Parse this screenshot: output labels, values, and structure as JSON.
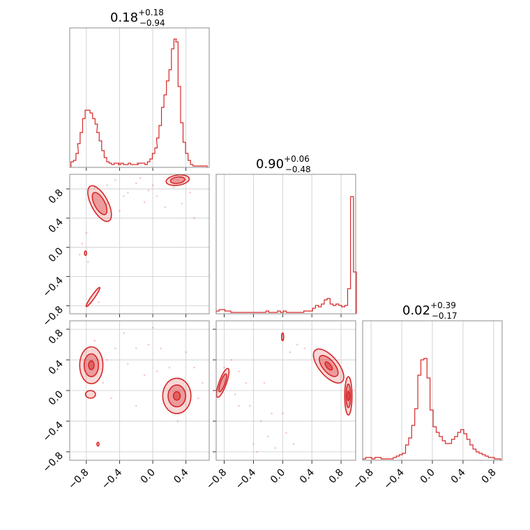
{
  "chart_data": {
    "type": "corner",
    "color": "#d62728",
    "grid": true,
    "titles": [
      {
        "value": "0.18",
        "plus": "+0.18",
        "minus": "−0.94"
      },
      {
        "value": "0.90",
        "plus": "+0.06",
        "minus": "−0.48"
      },
      {
        "value": "0.02",
        "plus": "+0.39",
        "minus": "−0.17"
      }
    ],
    "ticks": {
      "p0_x": [
        "−0.8",
        "−0.4",
        "0.0",
        "0.4"
      ],
      "p1_x": [
        "−0.8",
        "−0.4",
        "0.0",
        "0.4",
        "0.8"
      ],
      "p2_x": [
        "−0.8",
        "−0.4",
        "0.0",
        "0.4",
        "0.8"
      ],
      "p1_y": [
        "0.8",
        "0.4",
        "0.0",
        "−0.4",
        "−0.8"
      ],
      "p2_y": [
        "0.8",
        "0.4",
        "0.0",
        "−0.4",
        "−0.8"
      ]
    },
    "ranges": {
      "p0": [
        -1.0,
        0.68
      ],
      "p1": [
        -0.91,
        1.0
      ],
      "p2": [
        -0.91,
        0.91
      ]
    },
    "hist_p0": {
      "x": [
        -0.97,
        -0.94,
        -0.91,
        -0.89,
        -0.86,
        -0.83,
        -0.8,
        -0.77,
        -0.74,
        -0.71,
        -0.68,
        -0.66,
        -0.63,
        -0.6,
        -0.57,
        -0.54,
        -0.51,
        -0.48,
        -0.45,
        -0.42,
        -0.4,
        -0.37,
        -0.34,
        -0.31,
        -0.28,
        -0.25,
        -0.22,
        -0.19,
        -0.17,
        -0.14,
        -0.11,
        -0.08,
        -0.05,
        -0.02,
        0.01,
        0.04,
        0.06,
        0.09,
        0.12,
        0.15,
        0.18,
        0.21,
        0.24,
        0.27,
        0.29,
        0.32,
        0.35,
        0.38,
        0.41,
        0.44,
        0.47,
        0.5,
        0.52,
        0.55,
        0.58,
        0.61,
        0.64
      ],
      "y": [
        0.04,
        0.05,
        0.1,
        0.17,
        0.25,
        0.35,
        0.41,
        0.41,
        0.39,
        0.35,
        0.31,
        0.25,
        0.19,
        0.12,
        0.07,
        0.04,
        0.03,
        0.02,
        0.03,
        0.03,
        0.02,
        0.03,
        0.02,
        0.02,
        0.03,
        0.02,
        0.02,
        0.02,
        0.03,
        0.03,
        0.03,
        0.02,
        0.04,
        0.06,
        0.1,
        0.14,
        0.21,
        0.3,
        0.43,
        0.52,
        0.62,
        0.7,
        0.85,
        0.92,
        0.9,
        0.58,
        0.32,
        0.18,
        0.1,
        0.05,
        0.02,
        0.01,
        0.01,
        0.01,
        0.01,
        0.01,
        0.01
      ]
    },
    "hist_p1": {
      "x": [
        -0.89,
        -0.85,
        -0.81,
        -0.77,
        -0.73,
        -0.69,
        -0.65,
        -0.61,
        -0.57,
        -0.53,
        -0.49,
        -0.45,
        -0.41,
        -0.37,
        -0.33,
        -0.29,
        -0.25,
        -0.21,
        -0.17,
        -0.13,
        -0.09,
        -0.05,
        -0.01,
        0.03,
        0.07,
        0.11,
        0.15,
        0.19,
        0.23,
        0.27,
        0.31,
        0.35,
        0.39,
        0.43,
        0.47,
        0.51,
        0.55,
        0.59,
        0.63,
        0.67,
        0.71,
        0.75,
        0.79,
        0.83,
        0.87,
        0.91,
        0.95,
        0.99
      ],
      "y": [
        0.02,
        0.03,
        0.03,
        0.02,
        0.02,
        0.01,
        0.01,
        0.01,
        0.01,
        0.01,
        0.01,
        0.01,
        0.01,
        0.01,
        0.01,
        0.01,
        0.01,
        0.02,
        0.01,
        0.01,
        0.01,
        0.02,
        0.01,
        0.02,
        0.01,
        0.01,
        0.01,
        0.01,
        0.01,
        0.01,
        0.02,
        0.02,
        0.02,
        0.04,
        0.06,
        0.05,
        0.07,
        0.1,
        0.11,
        0.07,
        0.06,
        0.07,
        0.06,
        0.05,
        0.06,
        0.18,
        0.84,
        0.3
      ]
    },
    "hist_p2": {
      "x": [
        -0.89,
        -0.85,
        -0.81,
        -0.77,
        -0.73,
        -0.69,
        -0.65,
        -0.61,
        -0.57,
        -0.53,
        -0.49,
        -0.45,
        -0.41,
        -0.37,
        -0.33,
        -0.29,
        -0.25,
        -0.21,
        -0.17,
        -0.13,
        -0.09,
        -0.05,
        -0.01,
        0.03,
        0.07,
        0.11,
        0.15,
        0.19,
        0.23,
        0.27,
        0.31,
        0.35,
        0.39,
        0.43,
        0.47,
        0.51,
        0.55,
        0.59,
        0.63,
        0.67,
        0.71,
        0.75,
        0.79,
        0.83,
        0.87
      ],
      "y": [
        0.01,
        0.02,
        0.02,
        0.01,
        0.02,
        0.02,
        0.01,
        0.01,
        0.01,
        0.01,
        0.02,
        0.03,
        0.04,
        0.05,
        0.11,
        0.16,
        0.25,
        0.37,
        0.61,
        0.72,
        0.73,
        0.59,
        0.36,
        0.24,
        0.2,
        0.17,
        0.14,
        0.12,
        0.12,
        0.15,
        0.17,
        0.2,
        0.22,
        0.19,
        0.15,
        0.11,
        0.08,
        0.06,
        0.05,
        0.04,
        0.03,
        0.02,
        0.02,
        0.01,
        0.01
      ]
    },
    "scatter": {
      "p1_vs_p0": [
        [
          -0.7,
          0.82
        ],
        [
          -0.55,
          0.85
        ],
        [
          -0.45,
          0.92
        ],
        [
          -0.3,
          0.75
        ],
        [
          -0.2,
          0.88
        ],
        [
          -0.1,
          0.62
        ],
        [
          0.05,
          0.7
        ],
        [
          0.15,
          0.55
        ],
        [
          0.25,
          0.82
        ],
        [
          0.35,
          0.6
        ],
        [
          -0.8,
          0.2
        ],
        [
          -0.85,
          0.05
        ],
        [
          -0.78,
          -0.2
        ],
        [
          -0.88,
          -0.1
        ],
        [
          -0.65,
          -0.75
        ],
        [
          -0.4,
          0.5
        ],
        [
          0.45,
          0.75
        ],
        [
          0.2,
          0.95
        ],
        [
          -0.15,
          0.95
        ],
        [
          -0.55,
          0.6
        ],
        [
          0.0,
          0.85
        ],
        [
          -0.35,
          0.7
        ],
        [
          0.3,
          0.92
        ],
        [
          -0.05,
          0.78
        ],
        [
          0.5,
          0.4
        ]
      ],
      "p2_vs_p0": [
        [
          -0.45,
          0.55
        ],
        [
          -0.3,
          0.35
        ],
        [
          -0.1,
          0.2
        ],
        [
          0.0,
          0.82
        ],
        [
          0.1,
          0.55
        ],
        [
          -0.6,
          0.1
        ],
        [
          -0.5,
          -0.1
        ],
        [
          0.5,
          0.3
        ],
        [
          0.55,
          -0.1
        ],
        [
          0.2,
          0.3
        ],
        [
          -0.2,
          -0.2
        ],
        [
          -0.35,
          0.75
        ],
        [
          0.4,
          0.5
        ],
        [
          -0.7,
          0.65
        ],
        [
          -0.2,
          0.55
        ],
        [
          0.05,
          0.25
        ],
        [
          -0.55,
          0.4
        ],
        [
          0.3,
          -0.4
        ],
        [
          0.6,
          0.1
        ],
        [
          -0.05,
          0.6
        ]
      ],
      "p2_vs_p1": [
        [
          -0.8,
          0.3
        ],
        [
          -0.6,
          0.25
        ],
        [
          -0.5,
          0.1
        ],
        [
          -0.45,
          -0.2
        ],
        [
          -0.3,
          -0.4
        ],
        [
          -0.2,
          -0.6
        ],
        [
          -0.1,
          -0.75
        ],
        [
          0.05,
          -0.55
        ],
        [
          -0.7,
          0.4
        ],
        [
          -0.4,
          -0.7
        ],
        [
          0.2,
          0.6
        ],
        [
          0.1,
          0.5
        ],
        [
          -0.25,
          0.1
        ],
        [
          -0.6,
          -0.2
        ],
        [
          -0.15,
          -0.3
        ],
        [
          0.3,
          0.55
        ],
        [
          -0.35,
          -0.8
        ],
        [
          0.0,
          -0.3
        ],
        [
          -0.65,
          -0.05
        ],
        [
          0.15,
          -0.7
        ]
      ]
    },
    "blobs": {
      "p1_vs_p0": [
        {
          "cx": -0.64,
          "cy": 0.6,
          "rx": 0.1,
          "ry": 0.27,
          "rot": -28,
          "levels": 2
        },
        {
          "cx": 0.3,
          "cy": 0.92,
          "rx": 0.14,
          "ry": 0.07,
          "rot": -8,
          "levels": 2
        },
        {
          "cx": -0.72,
          "cy": -0.68,
          "rx": 0.02,
          "ry": 0.16,
          "rot": 35,
          "levels": 1
        },
        {
          "cx": -0.81,
          "cy": -0.08,
          "rx": 0.012,
          "ry": 0.03,
          "rot": 0,
          "levels": 1
        }
      ],
      "p2_vs_p0": [
        {
          "cx": -0.74,
          "cy": 0.33,
          "rx": 0.14,
          "ry": 0.24,
          "rot": 0,
          "levels": 3
        },
        {
          "cx": 0.29,
          "cy": -0.07,
          "rx": 0.17,
          "ry": 0.23,
          "rot": 0,
          "levels": 3
        },
        {
          "cx": -0.75,
          "cy": -0.05,
          "rx": 0.06,
          "ry": 0.05,
          "rot": 0,
          "levels": 1
        },
        {
          "cx": -0.66,
          "cy": -0.7,
          "rx": 0.012,
          "ry": 0.025,
          "rot": 0,
          "levels": 1
        }
      ],
      "p2_vs_p1": [
        {
          "cx": 0.63,
          "cy": 0.32,
          "rx": 0.13,
          "ry": 0.27,
          "rot": -40,
          "levels": 3
        },
        {
          "cx": 0.9,
          "cy": -0.07,
          "rx": 0.05,
          "ry": 0.25,
          "rot": 0,
          "levels": 3
        },
        {
          "cx": -0.82,
          "cy": 0.1,
          "rx": 0.05,
          "ry": 0.2,
          "rot": 20,
          "levels": 2
        },
        {
          "cx": 0.0,
          "cy": 0.7,
          "rx": 0.012,
          "ry": 0.05,
          "rot": 0,
          "levels": 1
        }
      ]
    }
  }
}
